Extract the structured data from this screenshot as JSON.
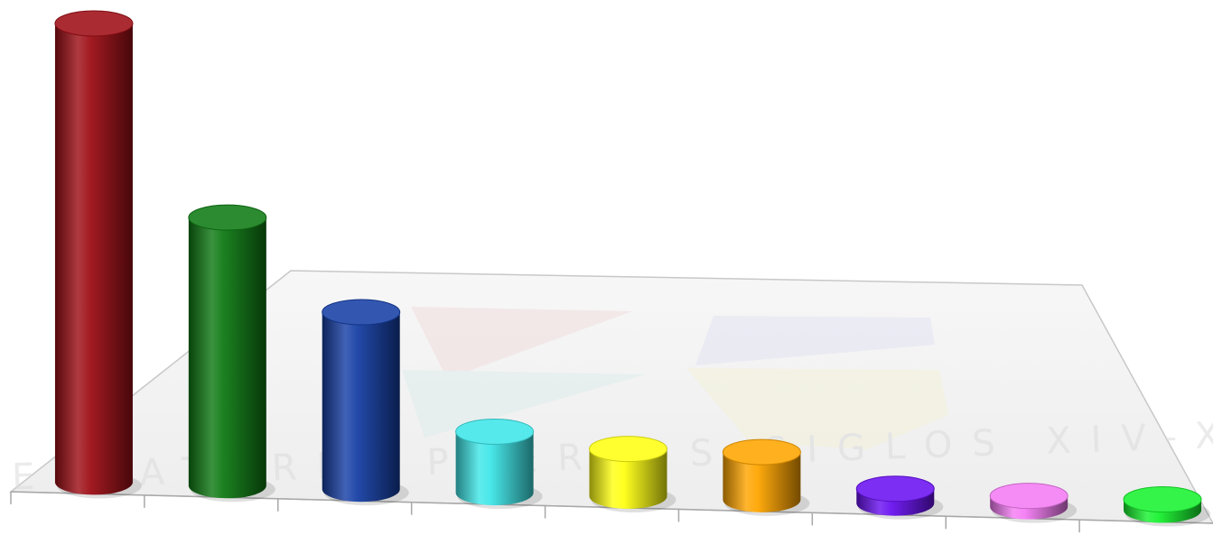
{
  "chart_data": {
    "type": "bar",
    "style": "3d-cylinder",
    "categories": [
      "",
      "",
      "",
      "",
      "",
      "",
      "",
      "",
      ""
    ],
    "values": [
      100,
      58,
      38,
      13,
      10,
      10,
      3,
      2,
      2
    ],
    "series_colors": [
      "#9e0f16",
      "#0f7a14",
      "#1740a6",
      "#3fe6e8",
      "#ffff14",
      "#ffa500",
      "#6a12f0",
      "#f47cf4",
      "#18f230"
    ],
    "grid": false,
    "legend": "none",
    "watermark": {
      "kind": "logo",
      "text": "OBSERVATORIO PUERTOS SIGLOS XIV-XXI"
    }
  }
}
